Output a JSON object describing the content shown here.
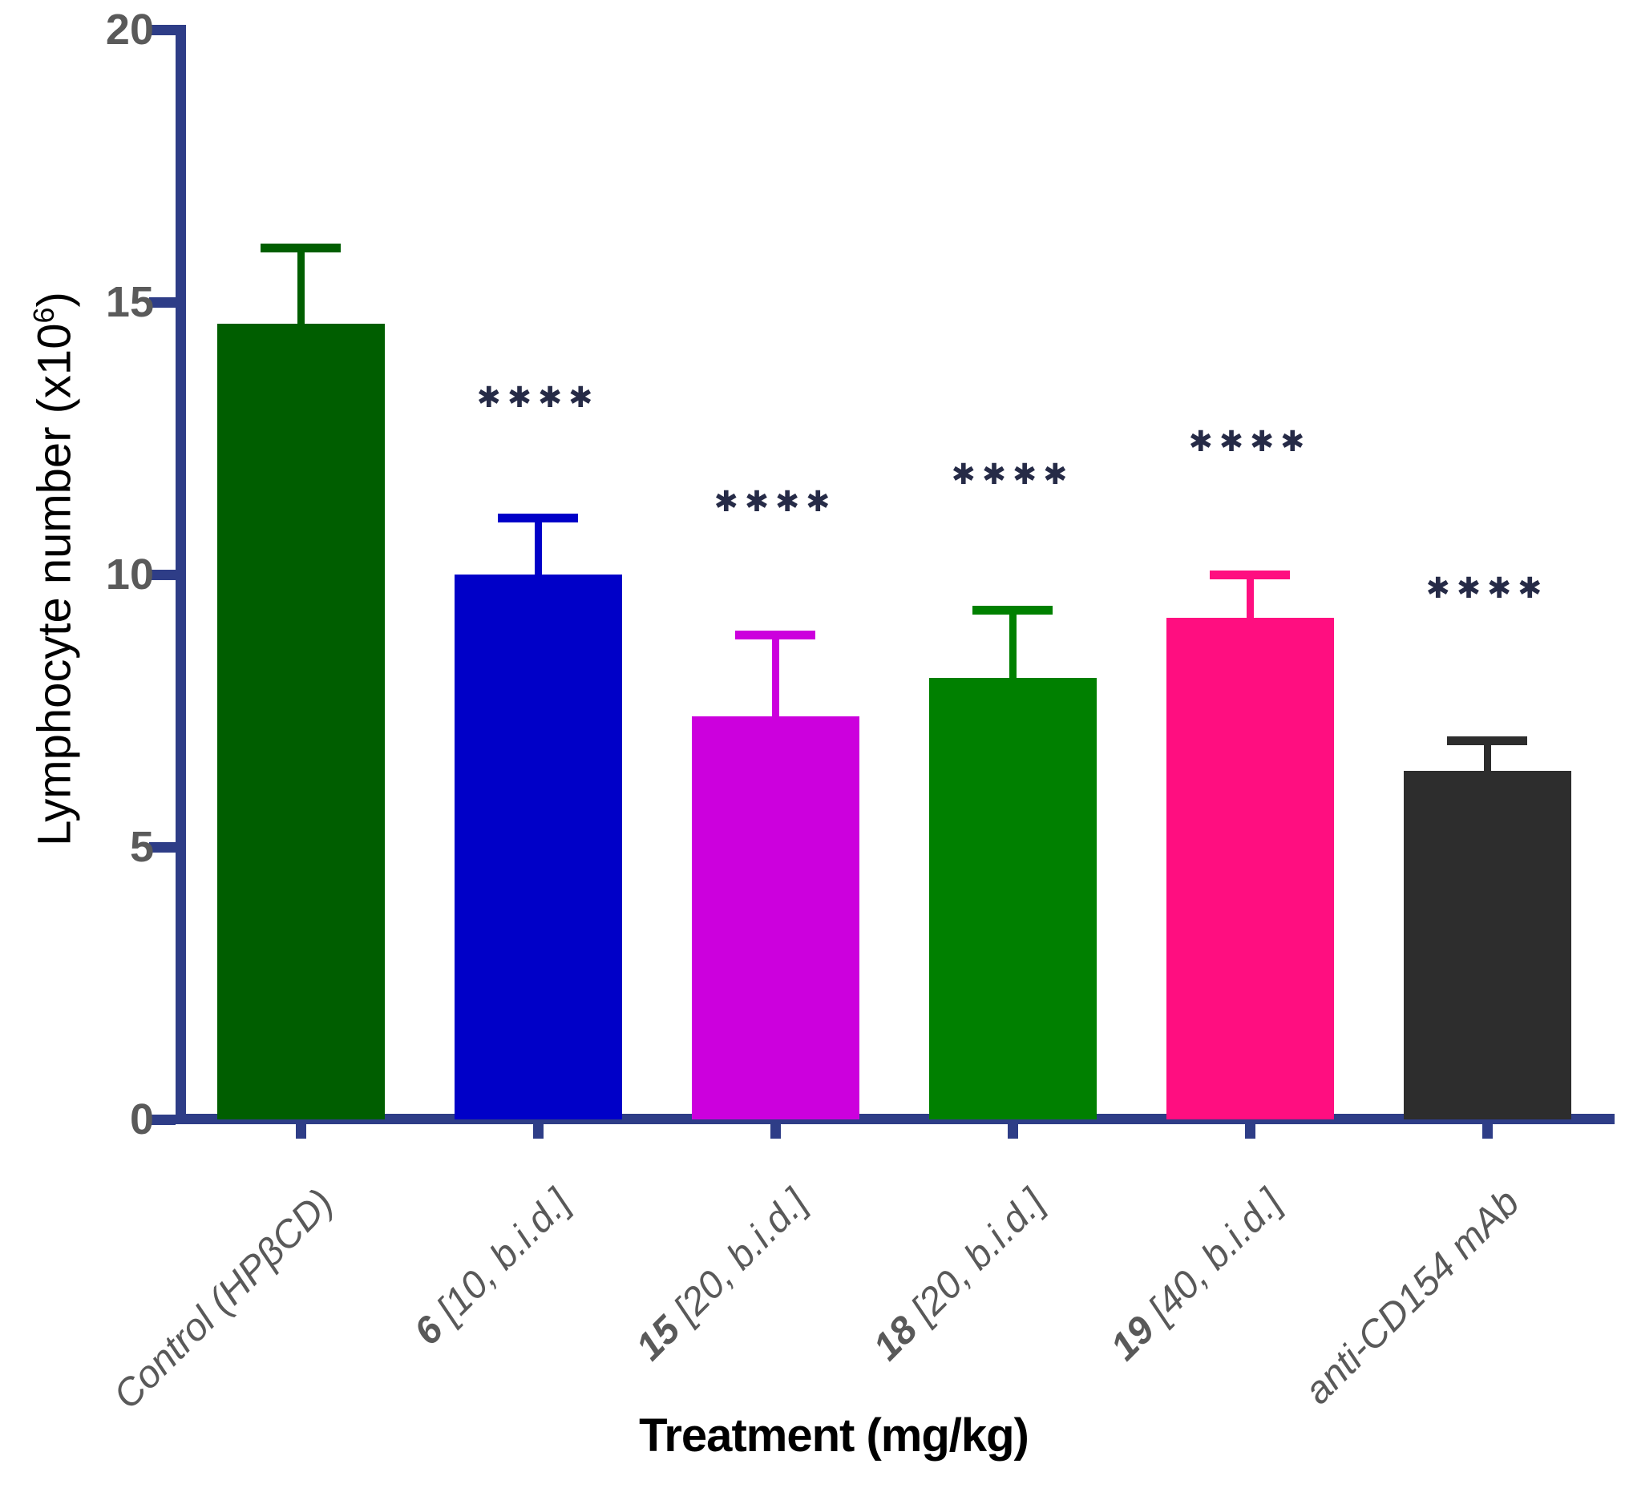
{
  "chart_data": {
    "type": "bar",
    "title": "",
    "xlabel": "Treatment (mg/kg)",
    "ylabel": "Lymphocyte number (x10⁶)",
    "ylabel_parts": {
      "main": "Lymphocyte number (x10",
      "sup": "6",
      "close": ")"
    },
    "ylim": [
      0,
      20
    ],
    "yticks": [
      0,
      5,
      10,
      15,
      20
    ],
    "grid": false,
    "legend": "none",
    "categories": [
      "Control (HPβCD)",
      "6 [10, b.i.d.]",
      "15 [20, b.i.d.]",
      "18 [20, b.i.d.]",
      "19 [40, b.i.d.]",
      "anti-CD154 mAb"
    ],
    "category_label_parts": [
      {
        "prefix": "",
        "rest": "Control (HPβCD)"
      },
      {
        "prefix": "6",
        "rest": " [10, b.i.d.]"
      },
      {
        "prefix": "15",
        "rest": " [20, b.i.d.]"
      },
      {
        "prefix": "18",
        "rest": " [20, b.i.d.]"
      },
      {
        "prefix": "19",
        "rest": " [40, b.i.d.]"
      },
      {
        "prefix": "",
        "rest": "anti-CD154 mAb"
      }
    ],
    "series": [
      {
        "name": "Lymphocyte number (x10⁶)",
        "values": [
          14.6,
          10.0,
          7.4,
          8.1,
          9.2,
          6.4
        ],
        "errors_sd": [
          1.4,
          1.05,
          1.5,
          1.25,
          0.8,
          0.55
        ]
      }
    ],
    "bar_colors": [
      "#005E00",
      "#0000C8",
      "#CC00DD",
      "#008000",
      "#FF0E80",
      "#2D2D2D"
    ],
    "significance_markers": [
      {
        "category_index": 1,
        "label": "✱✱✱✱",
        "y_value": 13.2
      },
      {
        "category_index": 2,
        "label": "✱✱✱✱",
        "y_value": 11.3
      },
      {
        "category_index": 3,
        "label": "✱✱✱✱",
        "y_value": 11.8
      },
      {
        "category_index": 4,
        "label": "✱✱✱✱",
        "y_value": 12.4
      },
      {
        "category_index": 5,
        "label": "✱✱✱✱",
        "y_value": 9.7
      }
    ]
  },
  "colors": {
    "axis": "#2E3D87",
    "y_tick_label": "#5A5A5A",
    "x_tick_label": "#595959",
    "significance": "#262B47",
    "axis_title": "#000000",
    "background": "#FFFFFF"
  }
}
